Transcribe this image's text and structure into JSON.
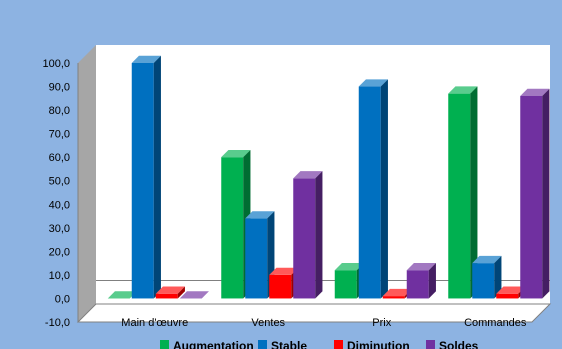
{
  "colors": {
    "chart_area": "#8db3e2",
    "back_wall": "#ffffff",
    "side_wall": "#a6a6a6",
    "floor": "#ffffff",
    "axis_line": "#808080"
  },
  "chart_data": {
    "type": "bar",
    "title": "",
    "xlabel": "",
    "ylabel": "",
    "style": "3d-clustered-column",
    "categories": [
      "Main d'œuvre",
      "Ventes",
      "Prix",
      "Commandes"
    ],
    "y_tick_labels": [
      "-10,0",
      "0,0",
      "10,0",
      "20,0",
      "30,0",
      "40,0",
      "50,0",
      "60,0",
      "70,0",
      "80,0",
      "90,0",
      "100,0"
    ],
    "ylim": [
      -10,
      100
    ],
    "grid": false,
    "legend_position": "bottom",
    "series": [
      {
        "name": "Augmentation",
        "color": "#00b050",
        "values": [
          0,
          60,
          12,
          87
        ]
      },
      {
        "name": "Stable",
        "color": "#0070c0",
        "values": [
          100,
          34,
          90,
          15
        ]
      },
      {
        "name": "Diminution",
        "color": "#ff0000",
        "values": [
          2,
          10,
          1,
          2
        ]
      },
      {
        "name": "Soldes",
        "color": "#7030a0",
        "values": [
          0,
          51,
          12,
          86
        ]
      }
    ]
  }
}
